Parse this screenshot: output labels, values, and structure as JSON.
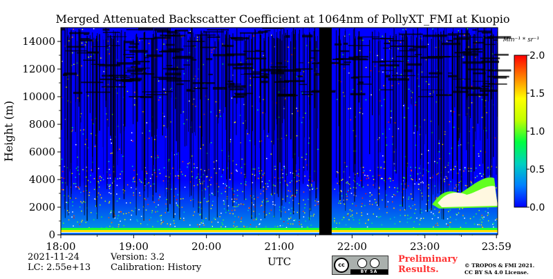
{
  "chart_data": {
    "type": "heatmap",
    "title": "Merged Attenuated Backscatter Coefficient at 1064nm of PollyXT_FMI at Kuopio",
    "xlabel": "UTC",
    "ylabel": "Height (m)",
    "x_range": [
      "18:00",
      "23:59"
    ],
    "x_range_hours": [
      18,
      24
    ],
    "ylim": [
      0,
      15000
    ],
    "x_ticks": [
      {
        "label": "18:00",
        "hour": 18
      },
      {
        "label": "19:00",
        "hour": 19
      },
      {
        "label": "20:00",
        "hour": 20
      },
      {
        "label": "21:00",
        "hour": 21
      },
      {
        "label": "22:00",
        "hour": 22
      },
      {
        "label": "23:00",
        "hour": 23
      },
      {
        "label": "23:59",
        "hour": 23.983
      }
    ],
    "y_ticks": [
      0,
      2000,
      4000,
      6000,
      8000,
      10000,
      12000,
      14000
    ],
    "colorbar": {
      "unit": "Mm⁻¹ * sr⁻¹",
      "range": [
        0.0,
        2.0
      ],
      "ticks": [
        "0.0",
        "0.5",
        "1.0",
        "1.5",
        "2.0"
      ],
      "colormap": [
        "#0000ff",
        "#0080ff",
        "#00d0c0",
        "#00ff40",
        "#c0ff00",
        "#ffff00",
        "#ff8000",
        "#ff0000"
      ]
    },
    "data_gap": {
      "start_hour": 21.55,
      "end_hour": 21.72
    },
    "features": {
      "background_value": 0.0,
      "near_surface_layer": {
        "height_m": [
          300,
          500
        ],
        "value": 1.5
      },
      "aerosol_layer": {
        "height_m": [
          0,
          4000
        ],
        "value": 0.4
      },
      "cloud": {
        "time_hour": [
          23.1,
          24.0
        ],
        "height_m": [
          1900,
          4400
        ],
        "value": 2.0
      }
    }
  },
  "footer": {
    "date": "2021-11-24",
    "lidar_constant": "LC: 2.55e+13",
    "version": "Version: 3.2",
    "calibration": "Calibration: History",
    "preliminary": [
      "Preliminary",
      "Results."
    ],
    "copyright_line1": "© TROPOS & FMI 2021.",
    "copyright_line2": "CC BY SA 4.0 License.",
    "cc_badge_text": "cc",
    "cc_badge_strip": "BY   SA"
  }
}
